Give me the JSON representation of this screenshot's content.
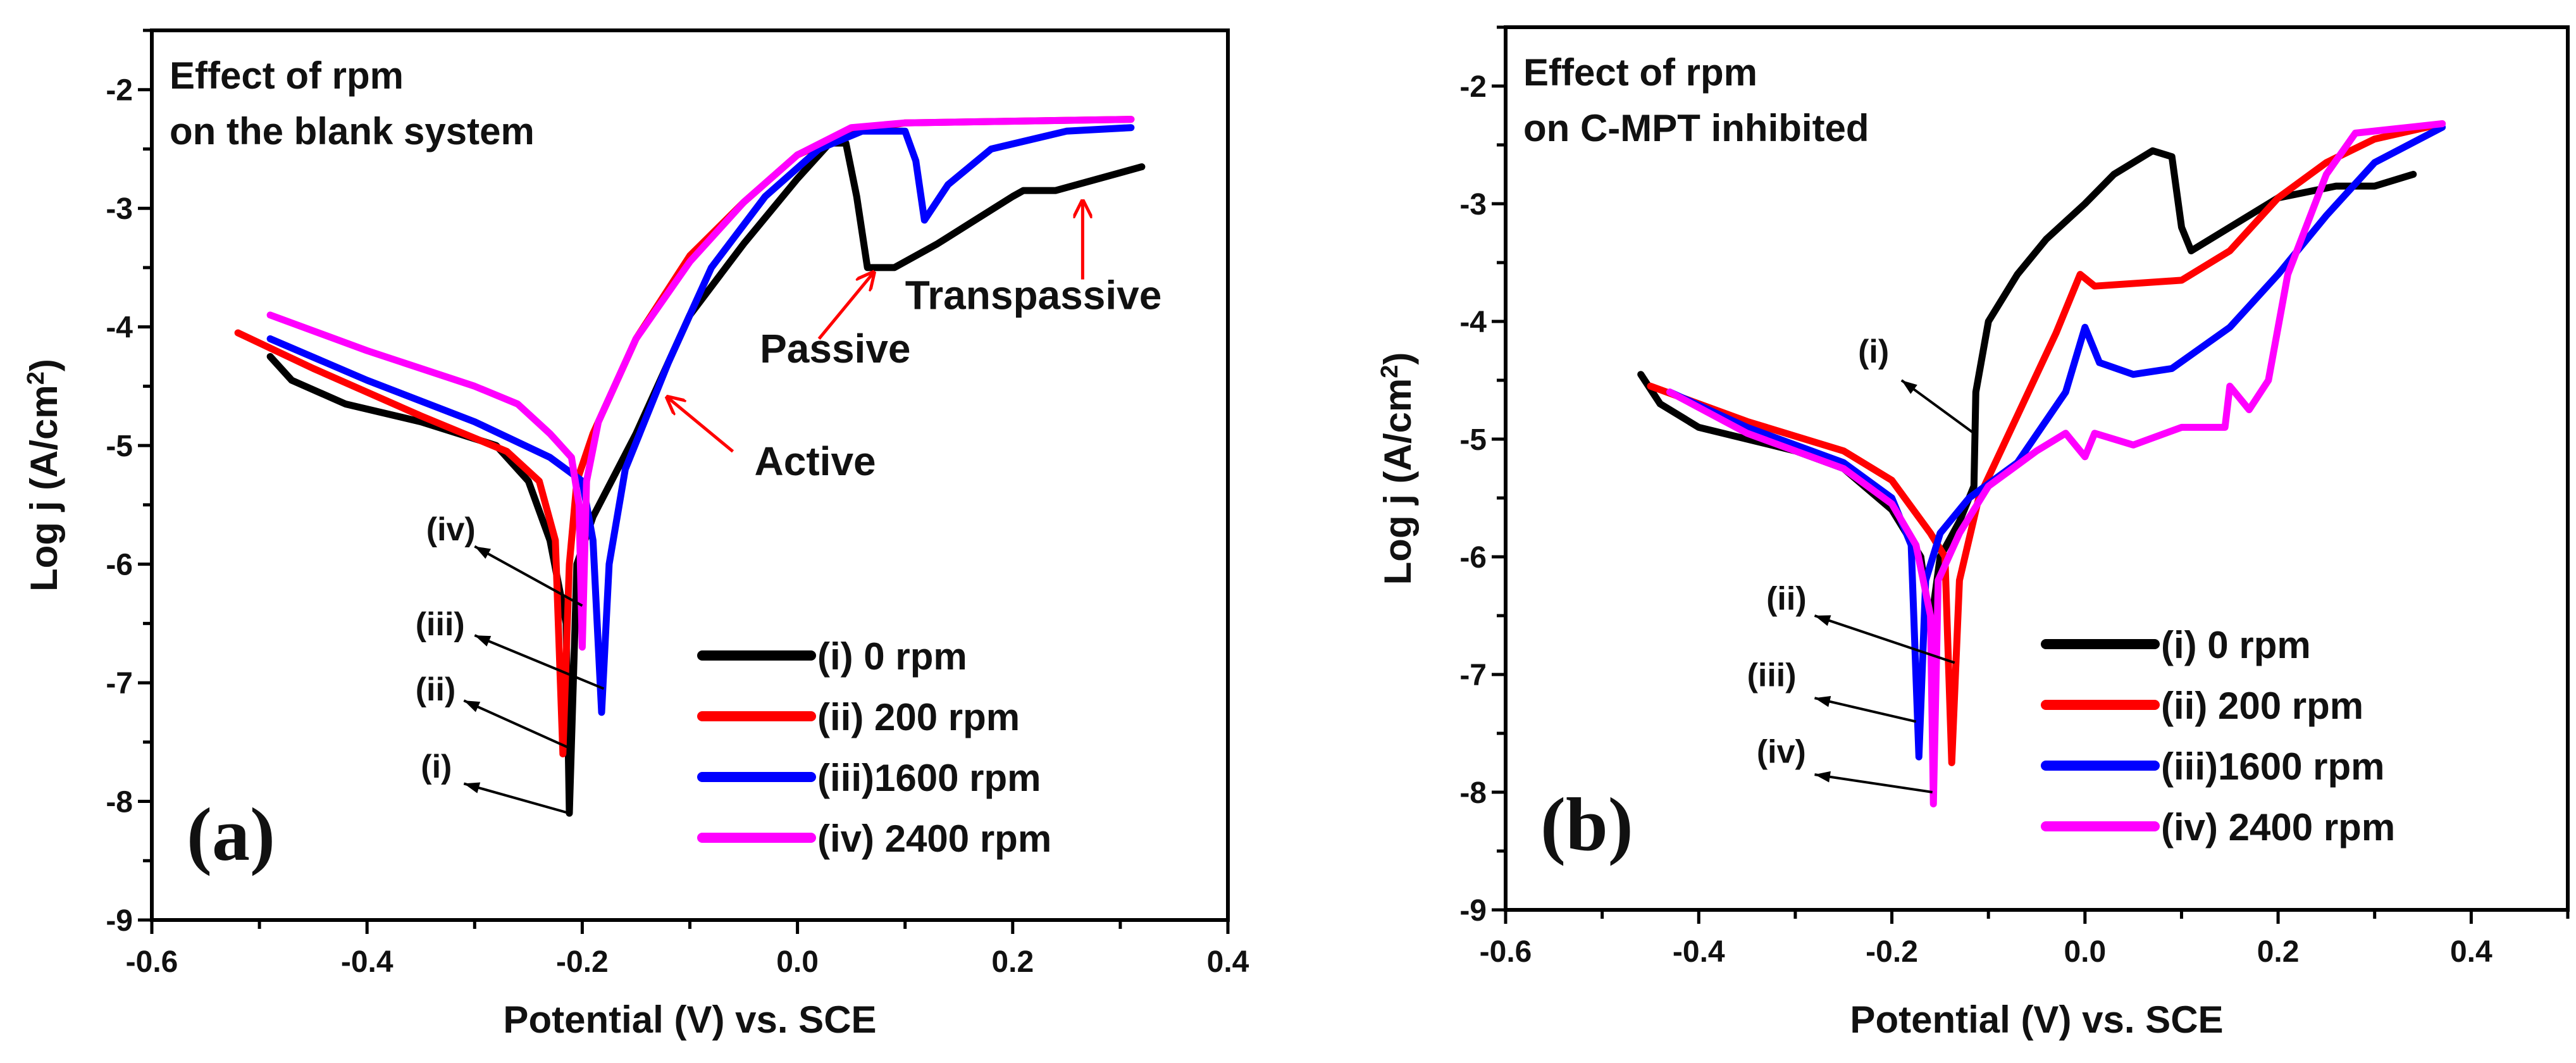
{
  "chart_data": [
    {
      "panel_label": "(a)",
      "type": "line",
      "title_lines": [
        "Effect of rpm",
        "on the blank system"
      ],
      "xlabel": "Potential (V) vs. SCE",
      "ylabel": "Log j (A/cm",
      "ylabel_sup": "2",
      "ylabel_end": ")",
      "xlim": [
        -0.6,
        0.4
      ],
      "ylim": [
        -9,
        -1.5
      ],
      "xticks": [
        -0.6,
        -0.4,
        -0.2,
        0.0,
        0.2,
        0.4
      ],
      "xtick_labels": [
        "-0.6",
        "-0.4",
        "-0.2",
        "0.0",
        "0.2",
        "0.4"
      ],
      "yticks": [
        -9,
        -8,
        -7,
        -6,
        -5,
        -4,
        -3,
        -2
      ],
      "ytick_labels": [
        "-9",
        "-8",
        "-7",
        "-6",
        "-5",
        "-4",
        "-3",
        "-2"
      ],
      "grid": false,
      "legend_position": "bottom-right",
      "series": [
        {
          "name": "(i) 0 rpm",
          "color": "#000000",
          "points": [
            [
              -0.49,
              -4.25
            ],
            [
              -0.47,
              -4.45
            ],
            [
              -0.42,
              -4.65
            ],
            [
              -0.35,
              -4.8
            ],
            [
              -0.28,
              -5.0
            ],
            [
              -0.25,
              -5.3
            ],
            [
              -0.23,
              -5.8
            ],
            [
              -0.215,
              -6.5
            ],
            [
              -0.212,
              -8.1
            ],
            [
              -0.205,
              -6.0
            ],
            [
              -0.19,
              -5.6
            ],
            [
              -0.15,
              -4.9
            ],
            [
              -0.1,
              -3.9
            ],
            [
              -0.05,
              -3.3
            ],
            [
              0.0,
              -2.75
            ],
            [
              0.03,
              -2.45
            ],
            [
              0.045,
              -2.45
            ],
            [
              0.055,
              -2.9
            ],
            [
              0.065,
              -3.5
            ],
            [
              0.09,
              -3.5
            ],
            [
              0.13,
              -3.3
            ],
            [
              0.2,
              -2.9
            ],
            [
              0.21,
              -2.85
            ],
            [
              0.24,
              -2.85
            ],
            [
              0.32,
              -2.65
            ]
          ]
        },
        {
          "name": "(ii) 200 rpm",
          "color": "#ff0000",
          "points": [
            [
              -0.52,
              -4.05
            ],
            [
              -0.45,
              -4.35
            ],
            [
              -0.35,
              -4.75
            ],
            [
              -0.27,
              -5.05
            ],
            [
              -0.24,
              -5.3
            ],
            [
              -0.225,
              -5.8
            ],
            [
              -0.218,
              -7.6
            ],
            [
              -0.212,
              -6.0
            ],
            [
              -0.205,
              -5.3
            ],
            [
              -0.19,
              -4.9
            ],
            [
              -0.15,
              -4.1
            ],
            [
              -0.1,
              -3.4
            ],
            [
              -0.05,
              -2.95
            ],
            [
              0.0,
              -2.55
            ],
            [
              0.05,
              -2.35
            ],
            [
              0.1,
              -2.28
            ],
            [
              0.31,
              -2.25
            ]
          ]
        },
        {
          "name": "(iii)1600 rpm",
          "color": "#0000ff",
          "points": [
            [
              -0.49,
              -4.1
            ],
            [
              -0.4,
              -4.45
            ],
            [
              -0.3,
              -4.8
            ],
            [
              -0.23,
              -5.1
            ],
            [
              -0.2,
              -5.3
            ],
            [
              -0.19,
              -5.8
            ],
            [
              -0.182,
              -7.25
            ],
            [
              -0.175,
              -6.0
            ],
            [
              -0.16,
              -5.2
            ],
            [
              -0.12,
              -4.3
            ],
            [
              -0.08,
              -3.5
            ],
            [
              -0.03,
              -2.9
            ],
            [
              0.02,
              -2.5
            ],
            [
              0.06,
              -2.35
            ],
            [
              0.1,
              -2.35
            ],
            [
              0.11,
              -2.6
            ],
            [
              0.118,
              -3.1
            ],
            [
              0.14,
              -2.8
            ],
            [
              0.18,
              -2.5
            ],
            [
              0.25,
              -2.35
            ],
            [
              0.31,
              -2.32
            ]
          ]
        },
        {
          "name": "(iv) 2400 rpm",
          "color": "#ff00ff",
          "points": [
            [
              -0.49,
              -3.9
            ],
            [
              -0.4,
              -4.2
            ],
            [
              -0.3,
              -4.5
            ],
            [
              -0.26,
              -4.65
            ],
            [
              -0.23,
              -4.9
            ],
            [
              -0.21,
              -5.1
            ],
            [
              -0.203,
              -5.5
            ],
            [
              -0.2,
              -6.7
            ],
            [
              -0.196,
              -5.3
            ],
            [
              -0.185,
              -4.8
            ],
            [
              -0.15,
              -4.1
            ],
            [
              -0.1,
              -3.45
            ],
            [
              -0.05,
              -2.95
            ],
            [
              0.0,
              -2.55
            ],
            [
              0.05,
              -2.32
            ],
            [
              0.1,
              -2.28
            ],
            [
              0.31,
              -2.25
            ]
          ]
        }
      ],
      "annotations": [
        {
          "text": "(iv)",
          "color": "#000000",
          "at": [
            -0.345,
            -5.8
          ],
          "from": [
            -0.3,
            -5.85
          ],
          "to": [
            -0.2,
            -6.35
          ]
        },
        {
          "text": "(iii)",
          "color": "#000000",
          "at": [
            -0.355,
            -6.6
          ],
          "from": [
            -0.3,
            -6.6
          ],
          "to": [
            -0.18,
            -7.05
          ]
        },
        {
          "text": "(ii)",
          "color": "#000000",
          "at": [
            -0.355,
            -7.15
          ],
          "from": [
            -0.31,
            -7.15
          ],
          "to": [
            -0.212,
            -7.55
          ]
        },
        {
          "text": "(i)",
          "color": "#000000",
          "at": [
            -0.35,
            -7.8
          ],
          "from": [
            -0.31,
            -7.85
          ],
          "to": [
            -0.212,
            -8.1
          ]
        },
        {
          "text": "Active",
          "color": "#000000",
          "arrow_color": "#ff0000",
          "at": [
            -0.04,
            -5.25
          ],
          "from": [
            -0.06,
            -5.05
          ],
          "to": [
            -0.12,
            -4.6
          ]
        },
        {
          "text": "Passive",
          "color": "#000000",
          "arrow_color": "#ff0000",
          "at": [
            -0.035,
            -4.3
          ],
          "from": [
            0.02,
            -4.1
          ],
          "to": [
            0.07,
            -3.55
          ]
        },
        {
          "text": "Transpassive",
          "color": "#000000",
          "arrow_color": "#ff0000",
          "at": [
            0.1,
            -3.85
          ],
          "from": [
            0.265,
            -3.6
          ],
          "to": [
            0.265,
            -2.95
          ]
        }
      ]
    },
    {
      "panel_label": "(b)",
      "type": "line",
      "title_lines": [
        "Effect of rpm",
        "on C-MPT inhibited"
      ],
      "xlabel": "Potential (V) vs. SCE",
      "ylabel": "Log j (A/cm",
      "ylabel_sup": "2",
      "ylabel_end": ")",
      "xlim": [
        -0.6,
        0.5
      ],
      "ylim": [
        -9,
        -1.5
      ],
      "xticks": [
        -0.6,
        -0.4,
        -0.2,
        0.0,
        0.2,
        0.4
      ],
      "xtick_labels": [
        "-0.6",
        "-0.4",
        "-0.2",
        "0.0",
        "0.2",
        "0.4"
      ],
      "yticks": [
        -9,
        -8,
        -7,
        -6,
        -5,
        -4,
        -3,
        -2
      ],
      "ytick_labels": [
        "-9",
        "-8",
        "-7",
        "-6",
        "-5",
        "-4",
        "-3",
        "-2"
      ],
      "grid": false,
      "legend_position": "bottom-right",
      "series": [
        {
          "name": "(i) 0 rpm",
          "color": "#000000",
          "points": [
            [
              -0.46,
              -4.45
            ],
            [
              -0.44,
              -4.7
            ],
            [
              -0.4,
              -4.9
            ],
            [
              -0.3,
              -5.1
            ],
            [
              -0.25,
              -5.25
            ],
            [
              -0.2,
              -5.6
            ],
            [
              -0.17,
              -6.0
            ],
            [
              -0.16,
              -6.6
            ],
            [
              -0.15,
              -6.0
            ],
            [
              -0.13,
              -5.7
            ],
            [
              -0.115,
              -5.4
            ],
            [
              -0.113,
              -4.6
            ],
            [
              -0.1,
              -4.0
            ],
            [
              -0.07,
              -3.6
            ],
            [
              -0.04,
              -3.3
            ],
            [
              0.0,
              -3.0
            ],
            [
              0.03,
              -2.75
            ],
            [
              0.07,
              -2.55
            ],
            [
              0.09,
              -2.6
            ],
            [
              0.1,
              -3.2
            ],
            [
              0.11,
              -3.4
            ],
            [
              0.15,
              -3.2
            ],
            [
              0.2,
              -2.95
            ],
            [
              0.26,
              -2.85
            ],
            [
              0.3,
              -2.85
            ],
            [
              0.34,
              -2.75
            ]
          ]
        },
        {
          "name": "(ii) 200 rpm",
          "color": "#ff0000",
          "points": [
            [
              -0.45,
              -4.55
            ],
            [
              -0.35,
              -4.85
            ],
            [
              -0.25,
              -5.1
            ],
            [
              -0.2,
              -5.35
            ],
            [
              -0.16,
              -5.8
            ],
            [
              -0.145,
              -6.0
            ],
            [
              -0.138,
              -7.75
            ],
            [
              -0.13,
              -6.2
            ],
            [
              -0.11,
              -5.5
            ],
            [
              -0.07,
              -4.8
            ],
            [
              -0.03,
              -4.1
            ],
            [
              -0.005,
              -3.6
            ],
            [
              0.01,
              -3.7
            ],
            [
              0.1,
              -3.65
            ],
            [
              0.15,
              -3.4
            ],
            [
              0.2,
              -2.95
            ],
            [
              0.25,
              -2.65
            ],
            [
              0.3,
              -2.45
            ],
            [
              0.37,
              -2.32
            ]
          ]
        },
        {
          "name": "(iii)1600 rpm",
          "color": "#0000ff",
          "points": [
            [
              -0.43,
              -4.6
            ],
            [
              -0.35,
              -4.9
            ],
            [
              -0.25,
              -5.2
            ],
            [
              -0.2,
              -5.5
            ],
            [
              -0.18,
              -5.9
            ],
            [
              -0.172,
              -7.7
            ],
            [
              -0.165,
              -6.2
            ],
            [
              -0.15,
              -5.8
            ],
            [
              -0.12,
              -5.5
            ],
            [
              -0.07,
              -5.2
            ],
            [
              -0.02,
              -4.6
            ],
            [
              0.0,
              -4.05
            ],
            [
              0.015,
              -4.35
            ],
            [
              0.05,
              -4.45
            ],
            [
              0.09,
              -4.4
            ],
            [
              0.15,
              -4.05
            ],
            [
              0.2,
              -3.6
            ],
            [
              0.25,
              -3.1
            ],
            [
              0.3,
              -2.65
            ],
            [
              0.37,
              -2.35
            ]
          ]
        },
        {
          "name": "(iv) 2400 rpm",
          "color": "#ff00ff",
          "points": [
            [
              -0.43,
              -4.6
            ],
            [
              -0.35,
              -4.95
            ],
            [
              -0.25,
              -5.25
            ],
            [
              -0.2,
              -5.55
            ],
            [
              -0.175,
              -5.9
            ],
            [
              -0.16,
              -6.5
            ],
            [
              -0.157,
              -8.1
            ],
            [
              -0.152,
              -6.2
            ],
            [
              -0.13,
              -5.8
            ],
            [
              -0.1,
              -5.4
            ],
            [
              -0.05,
              -5.1
            ],
            [
              -0.02,
              -4.95
            ],
            [
              -0.005,
              -5.1
            ],
            [
              0.0,
              -5.15
            ],
            [
              0.01,
              -4.95
            ],
            [
              0.05,
              -5.05
            ],
            [
              0.1,
              -4.9
            ],
            [
              0.145,
              -4.9
            ],
            [
              0.15,
              -4.55
            ],
            [
              0.17,
              -4.75
            ],
            [
              0.19,
              -4.5
            ],
            [
              0.21,
              -3.6
            ],
            [
              0.25,
              -2.75
            ],
            [
              0.28,
              -2.4
            ],
            [
              0.37,
              -2.32
            ]
          ]
        }
      ],
      "annotations": [
        {
          "text": "(i)",
          "color": "#000000",
          "at": [
            -0.235,
            -4.35
          ],
          "from": [
            -0.19,
            -4.5
          ],
          "to": [
            -0.115,
            -4.95
          ]
        },
        {
          "text": "(ii)",
          "color": "#000000",
          "at": [
            -0.33,
            -6.45
          ],
          "from": [
            -0.28,
            -6.5
          ],
          "to": [
            -0.135,
            -6.9
          ]
        },
        {
          "text": "(iii)",
          "color": "#000000",
          "at": [
            -0.35,
            -7.1
          ],
          "from": [
            -0.28,
            -7.2
          ],
          "to": [
            -0.175,
            -7.4
          ]
        },
        {
          "text": "(iv)",
          "color": "#000000",
          "at": [
            -0.34,
            -7.75
          ],
          "from": [
            -0.28,
            -7.85
          ],
          "to": [
            -0.158,
            -8.0
          ]
        }
      ]
    }
  ]
}
